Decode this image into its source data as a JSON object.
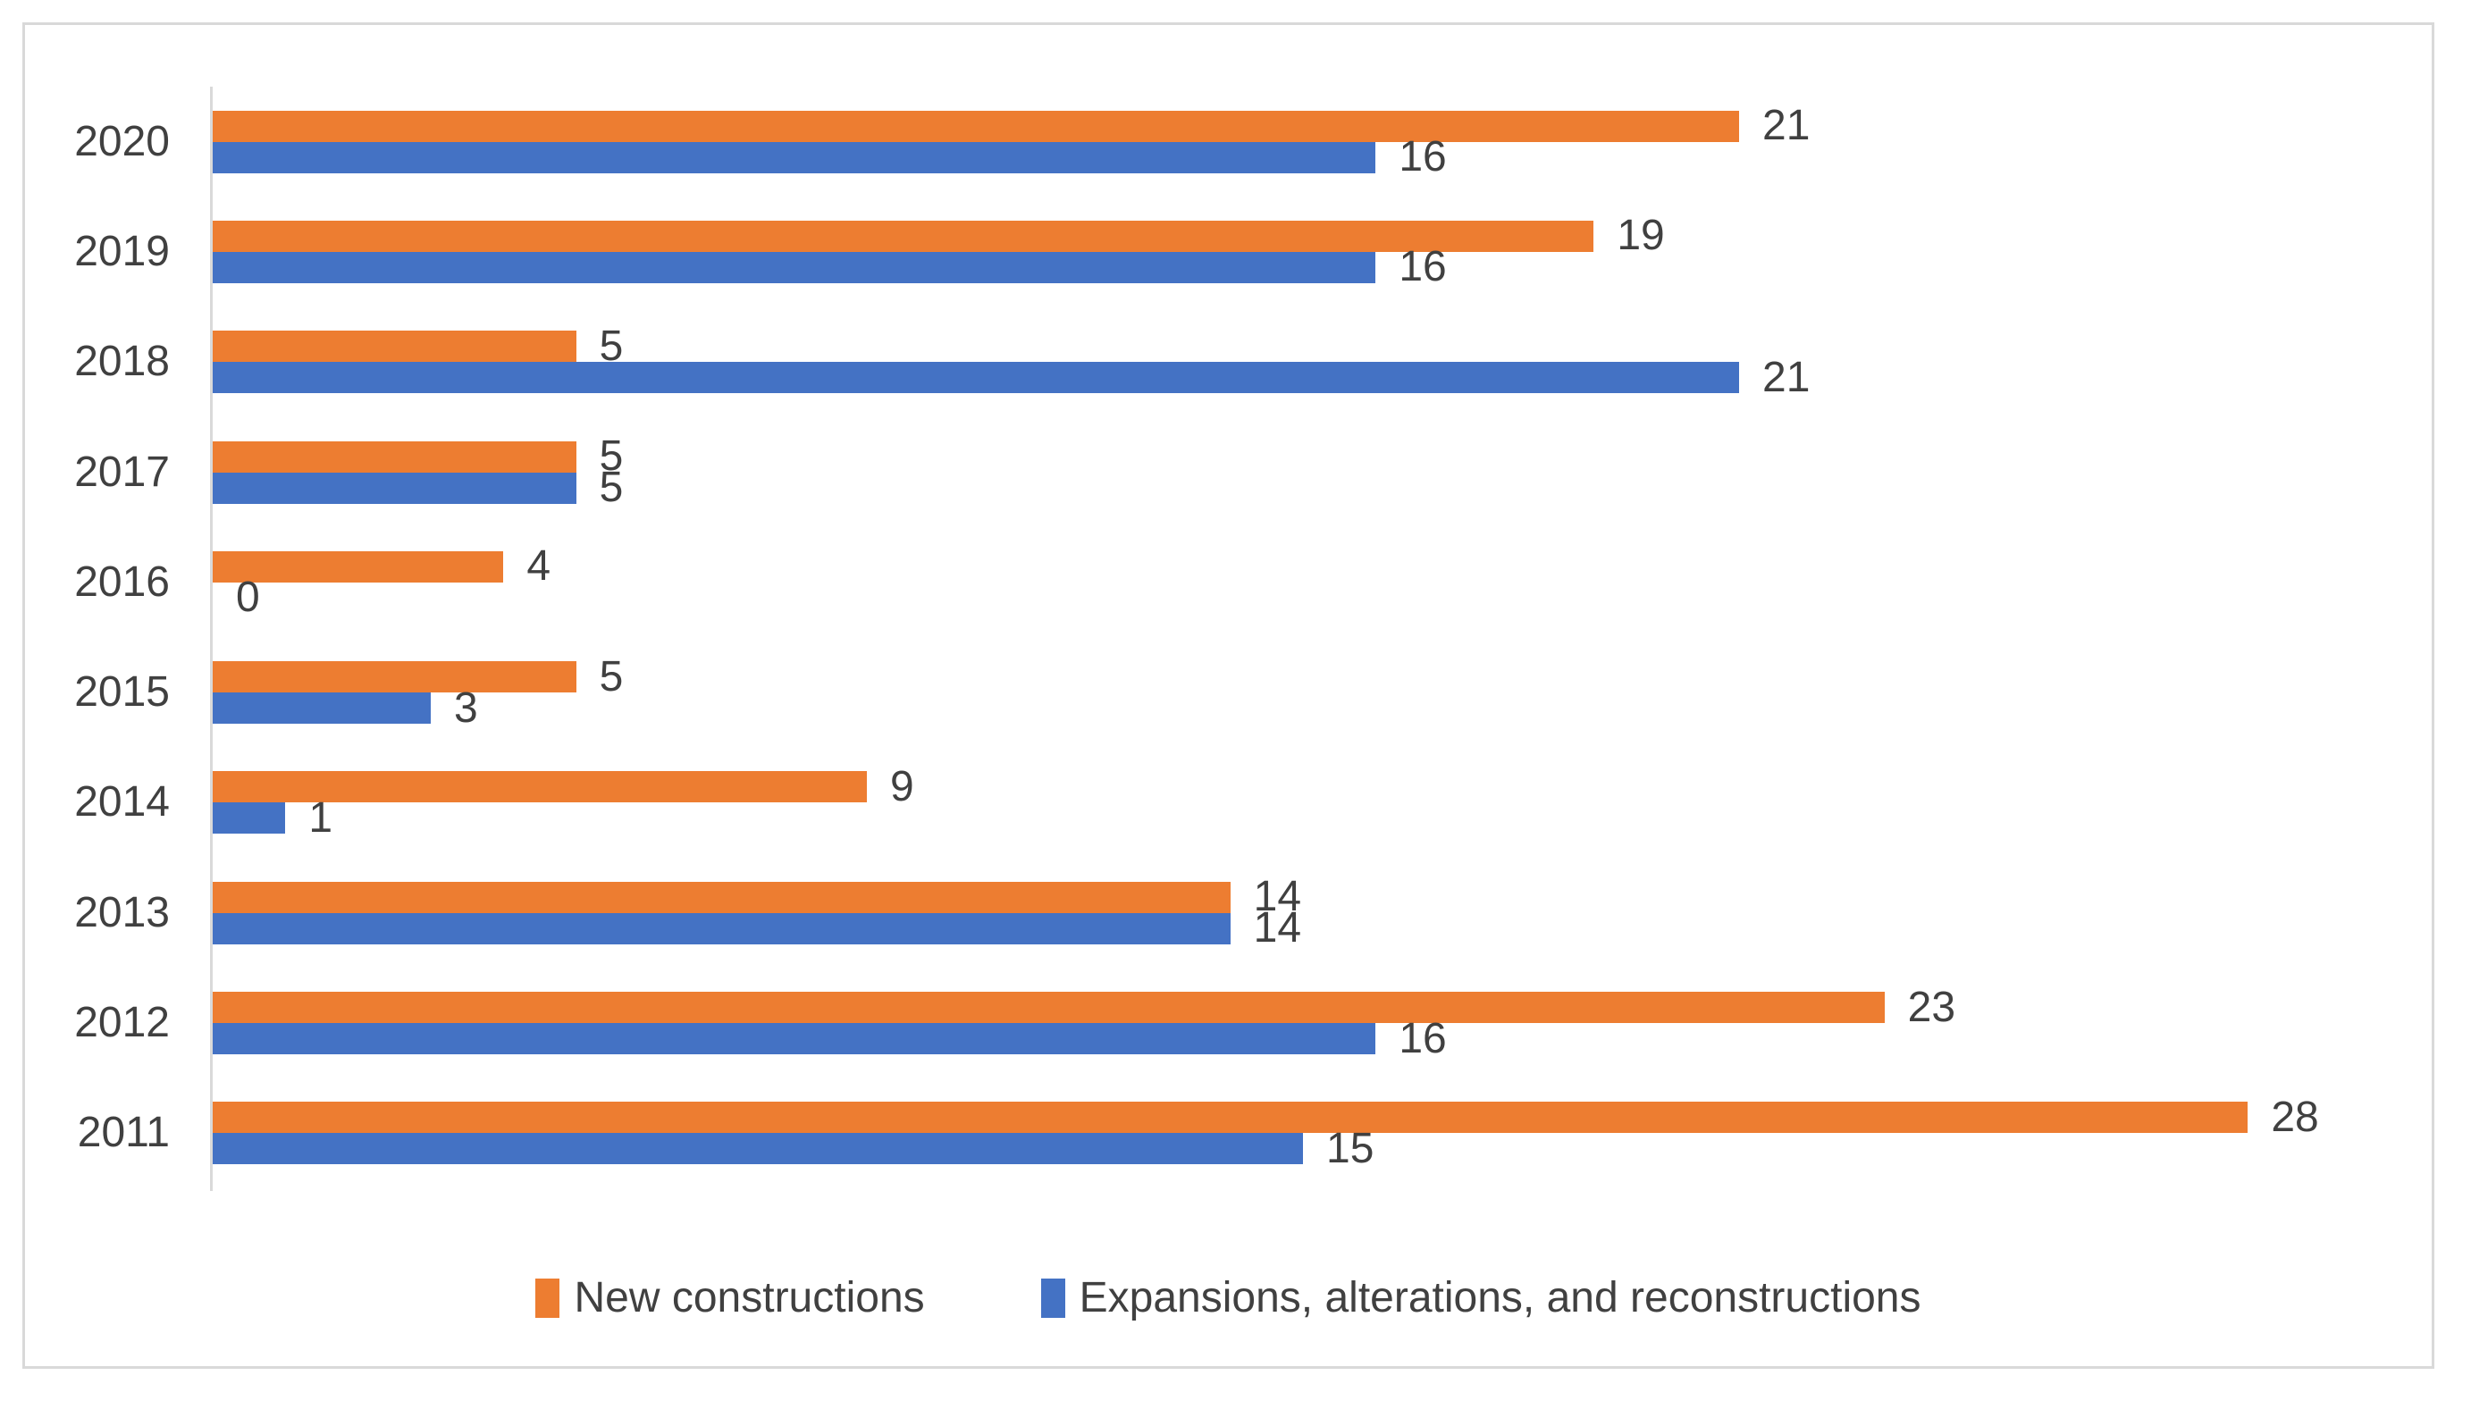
{
  "figure": {
    "background_color": "#ffffff",
    "frame_border_color": "#d9d9d9",
    "axis_line_color": "#d9d9d9",
    "text_color": "#404040"
  },
  "chart_data": {
    "type": "bar",
    "orientation": "horizontal",
    "title": "",
    "categories": [
      "2020",
      "2019",
      "2018",
      "2017",
      "2016",
      "2015",
      "2014",
      "2013",
      "2012",
      "2011"
    ],
    "series": [
      {
        "name": "New constructions",
        "color": "#ED7D31",
        "values": [
          21,
          19,
          5,
          5,
          4,
          5,
          9,
          14,
          23,
          28
        ]
      },
      {
        "name": "Expansions, alterations, and reconstructions",
        "color": "#4472C4",
        "values": [
          16,
          16,
          21,
          5,
          0,
          3,
          1,
          14,
          16,
          15
        ]
      }
    ],
    "xlim": [
      0,
      30
    ],
    "grid": false,
    "data_labels": "outside-end",
    "legend_position": "bottom"
  }
}
